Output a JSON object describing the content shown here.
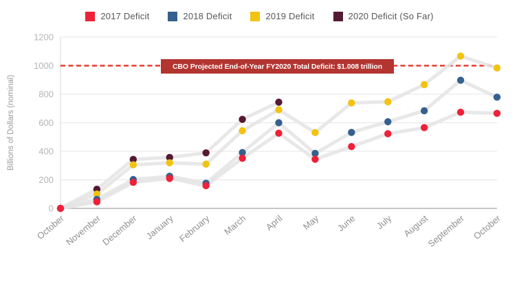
{
  "legend": {
    "items": [
      "2017 Deficit",
      "2018 Deficit",
      "2019 Deficit",
      "2020 Deficit (So Far)"
    ]
  },
  "annotation_label": "CBO Projected End-of-Year FY2020 Total Deficit: $1.008 trillion",
  "chart_data": {
    "type": "line",
    "title": "",
    "xlabel": "",
    "ylabel": "Billions of Dollars (nominal)",
    "categories": [
      "October",
      "November",
      "December",
      "January",
      "February",
      "March",
      "April",
      "May",
      "June",
      "July",
      "August",
      "September",
      "October"
    ],
    "series": [
      {
        "name": "2017 Deficit",
        "color": "#ee2138",
        "values": [
          0,
          46,
          182,
          210,
          159,
          351,
          527,
          344,
          433,
          523,
          566,
          674,
          666
        ]
      },
      {
        "name": "2018 Deficit",
        "color": "#35618f",
        "values": [
          0,
          63,
          202,
          225,
          176,
          391,
          600,
          385,
          532,
          607,
          684,
          898,
          779
        ]
      },
      {
        "name": "2019 Deficit",
        "color": "#f3c311",
        "values": [
          0,
          100,
          305,
          319,
          310,
          544,
          691,
          531,
          739,
          747,
          867,
          1067,
          984
        ]
      },
      {
        "name": "2020 Deficit (So Far)",
        "color": "#551a33",
        "values": [
          0,
          134,
          343,
          357,
          389,
          624,
          744
        ]
      }
    ],
    "ylim": [
      0,
      1200
    ],
    "yticks": [
      0,
      200,
      400,
      600,
      800,
      1000,
      1200
    ],
    "grid": true,
    "legend_position": "top",
    "connector_line_color": "#e4e4e4",
    "annotation": {
      "text": "CBO Projected End-of-Year FY2020 Total Deficit: $1.008 trillion",
      "value": 1000,
      "line_color": "#e8392f",
      "box_color": "#b23530"
    },
    "axis_text_color": "#b5b5b5",
    "month_text_color": "#909090",
    "gridline_color": "#e9e9e9"
  }
}
